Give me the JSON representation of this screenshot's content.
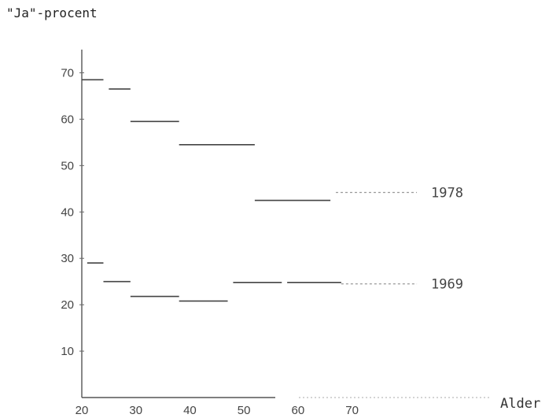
{
  "chart_data": {
    "type": "line",
    "title": "",
    "ylabel": "\"Ja\"-procent",
    "xlabel": "Alder",
    "xlim": [
      20,
      98
    ],
    "ylim": [
      0,
      75
    ],
    "x_ticks": [
      "20",
      "30",
      "40",
      "50",
      "60",
      "70"
    ],
    "y_ticks": [
      "10",
      "20",
      "30",
      "40",
      "50",
      "60",
      "70"
    ],
    "series": [
      {
        "name": "1978",
        "segments": [
          {
            "x0": 20,
            "x1": 24,
            "y": 68.5
          },
          {
            "x0": 25,
            "x1": 29,
            "y": 66.5
          },
          {
            "x0": 29,
            "x1": 38,
            "y": 59.5
          },
          {
            "x0": 38,
            "x1": 52,
            "y": 54.5
          },
          {
            "x0": 52,
            "x1": 66,
            "y": 42.5
          },
          {
            "x0": 67,
            "x1": 82,
            "y": 44.2
          }
        ]
      },
      {
        "name": "1969",
        "segments": [
          {
            "x0": 21,
            "x1": 24,
            "y": 29
          },
          {
            "x0": 24,
            "x1": 29,
            "y": 25
          },
          {
            "x0": 29,
            "x1": 38,
            "y": 21.8
          },
          {
            "x0": 38,
            "x1": 47,
            "y": 20.8
          },
          {
            "x0": 48,
            "x1": 57,
            "y": 24.8
          },
          {
            "x0": 58,
            "x1": 68,
            "y": 24.8
          },
          {
            "x0": 68,
            "x1": 82,
            "y": 24.5
          }
        ]
      }
    ],
    "grid": false,
    "legend": "inline-right"
  }
}
